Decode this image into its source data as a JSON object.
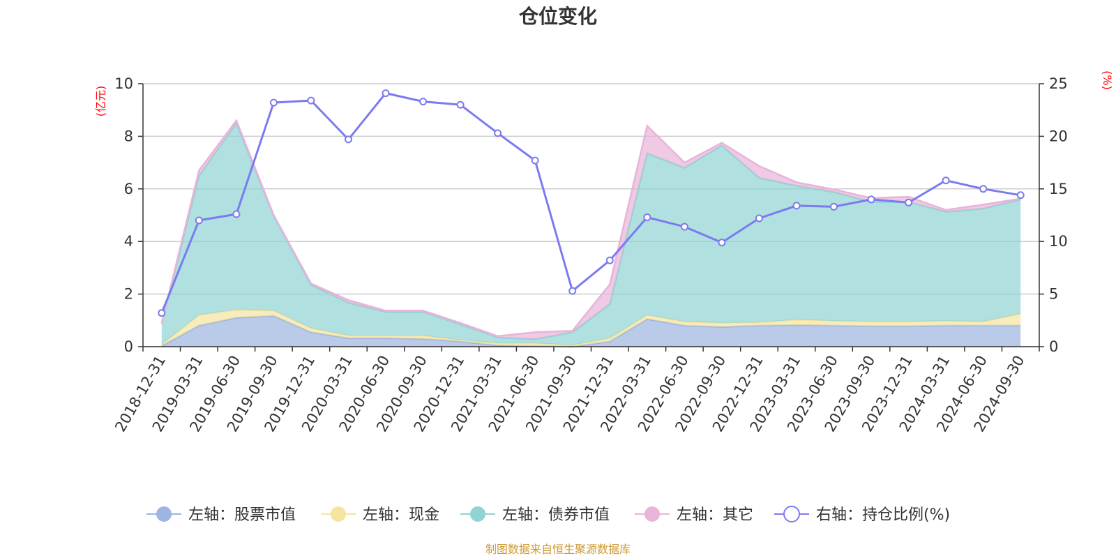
{
  "chart_data": {
    "type": "area",
    "title": "仓位变化",
    "left_axis": {
      "unit": "(亿元)",
      "ylim": [
        0,
        10
      ],
      "ticks": [
        "0",
        "2",
        "4",
        "6",
        "8",
        "10"
      ]
    },
    "right_axis": {
      "unit": "(%)",
      "ylim": [
        0,
        25
      ],
      "ticks": [
        "0",
        "5",
        "10",
        "15",
        "20",
        "25"
      ]
    },
    "categories": [
      "2018-12-31",
      "2019-03-31",
      "2019-06-30",
      "2019-09-30",
      "2019-12-31",
      "2020-03-31",
      "2020-06-30",
      "2020-09-30",
      "2020-12-31",
      "2021-03-31",
      "2021-06-30",
      "2021-09-30",
      "2021-12-31",
      "2022-03-31",
      "2022-06-30",
      "2022-09-30",
      "2022-12-31",
      "2023-03-31",
      "2023-06-30",
      "2023-09-30",
      "2023-12-31",
      "2024-03-31",
      "2024-06-30",
      "2024-09-30"
    ],
    "series": [
      {
        "name": "左轴：股票市值",
        "axis": "left",
        "stack": true,
        "color": "#9db5e0",
        "values": [
          0.03,
          0.8,
          1.1,
          1.17,
          0.55,
          0.32,
          0.32,
          0.3,
          0.2,
          0.05,
          0.03,
          0.0,
          0.2,
          1.05,
          0.8,
          0.75,
          0.8,
          0.82,
          0.8,
          0.78,
          0.78,
          0.8,
          0.8,
          0.8
        ]
      },
      {
        "name": "左轴：现金",
        "axis": "left",
        "stack": true,
        "color": "#f5e4a0",
        "values": [
          0.05,
          0.4,
          0.3,
          0.2,
          0.15,
          0.1,
          0.1,
          0.12,
          0.05,
          0.08,
          0.1,
          0.05,
          0.12,
          0.15,
          0.15,
          0.15,
          0.12,
          0.2,
          0.18,
          0.17,
          0.17,
          0.18,
          0.15,
          0.45
        ]
      },
      {
        "name": "左轴：债券市值",
        "axis": "left",
        "stack": true,
        "color": "#8fd3d3",
        "values": [
          0.8,
          5.3,
          7.1,
          3.6,
          1.65,
          1.25,
          0.9,
          0.9,
          0.6,
          0.22,
          0.15,
          0.5,
          1.3,
          6.15,
          5.85,
          6.75,
          5.5,
          5.1,
          4.9,
          4.55,
          4.55,
          4.15,
          4.3,
          4.35
        ]
      },
      {
        "name": "左轴：其它",
        "axis": "left",
        "stack": true,
        "color": "#e8b4d8",
        "values": [
          0.0,
          0.2,
          0.1,
          0.03,
          0.05,
          0.1,
          0.05,
          0.05,
          0.05,
          0.05,
          0.27,
          0.05,
          0.75,
          1.05,
          0.2,
          0.1,
          0.45,
          0.13,
          0.1,
          0.15,
          0.2,
          0.07,
          0.15,
          0.03
        ]
      },
      {
        "name": "右轴：持仓比例(%)",
        "axis": "right",
        "stack": false,
        "color": "#7b7bf0",
        "values": [
          3.2,
          12.0,
          12.6,
          23.2,
          23.4,
          19.7,
          24.1,
          23.3,
          23.0,
          20.3,
          17.7,
          5.3,
          8.2,
          12.3,
          11.4,
          9.9,
          12.2,
          13.4,
          13.3,
          14.0,
          13.7,
          15.8,
          15.0,
          14.4
        ]
      }
    ],
    "grid": true,
    "legend_position": "bottom"
  },
  "footer": {
    "source": "制图数据来自恒生聚源数据库"
  }
}
